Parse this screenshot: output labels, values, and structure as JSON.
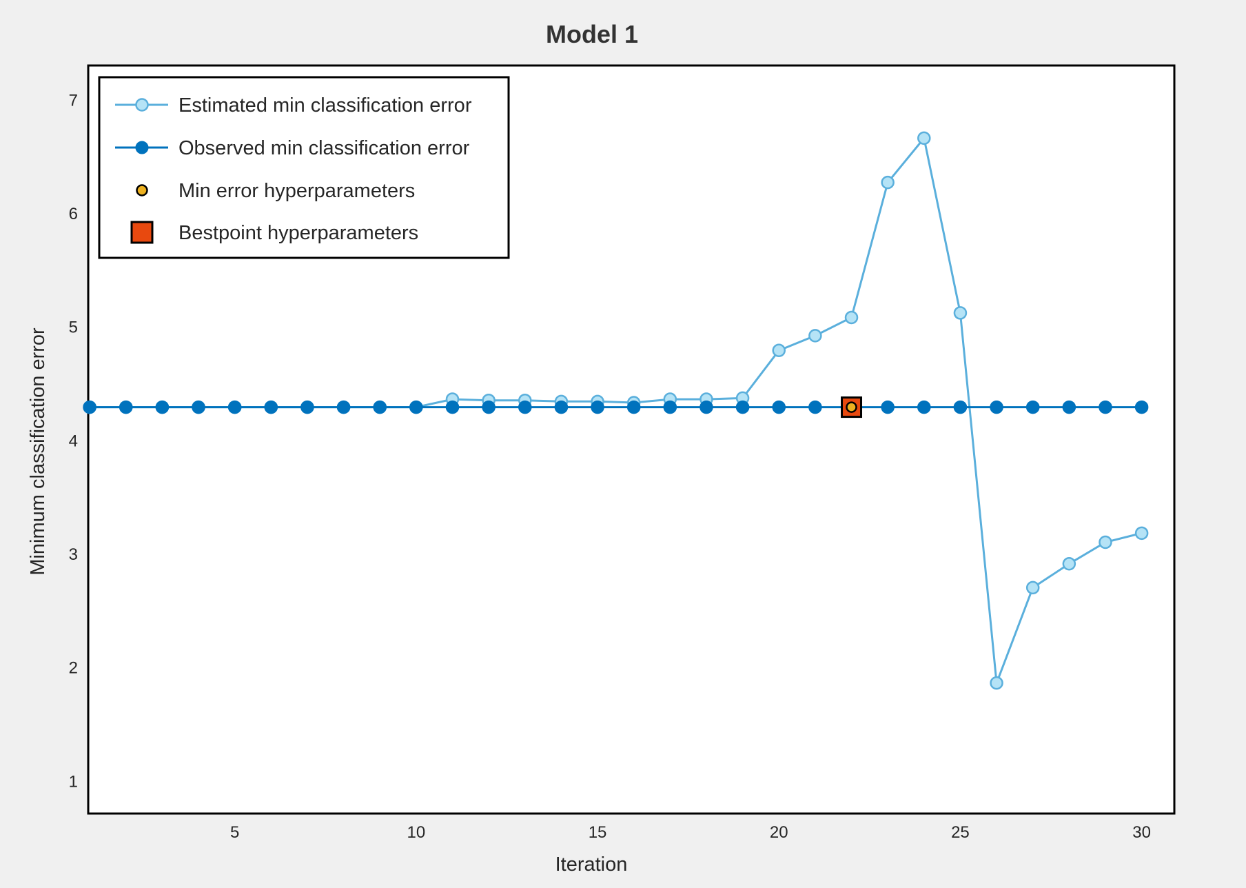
{
  "chart_data": {
    "type": "line",
    "title": "Model 1",
    "xlabel": "Iteration",
    "ylabel": "Minimum classification error",
    "xlim": [
      0.96,
      30.9
    ],
    "ylim": [
      0.71,
      7.3
    ],
    "xticks": [
      5,
      10,
      15,
      20,
      25,
      30
    ],
    "yticks": [
      1,
      2,
      3,
      4,
      5,
      6,
      7
    ],
    "grid": false,
    "legend_position": "top-left",
    "series": [
      {
        "name": "Estimated min classification error",
        "color": "#5aafdc",
        "marker": "open-circle",
        "x": [
          1,
          2,
          3,
          4,
          5,
          6,
          7,
          8,
          9,
          10,
          11,
          12,
          13,
          14,
          15,
          16,
          17,
          18,
          19,
          20,
          21,
          22,
          23,
          24,
          25,
          26,
          27,
          28,
          29,
          30
        ],
        "y": [
          4.29,
          4.29,
          4.29,
          4.29,
          4.29,
          4.29,
          4.29,
          4.29,
          4.29,
          4.29,
          4.36,
          4.35,
          4.35,
          4.34,
          4.34,
          4.33,
          4.36,
          4.36,
          4.37,
          4.79,
          4.92,
          5.08,
          6.27,
          6.66,
          5.12,
          1.86,
          2.7,
          2.91,
          3.1,
          3.18
        ]
      },
      {
        "name": "Observed min classification error",
        "color": "#0072bd",
        "marker": "filled-circle",
        "x": [
          1,
          2,
          3,
          4,
          5,
          6,
          7,
          8,
          9,
          10,
          11,
          12,
          13,
          14,
          15,
          16,
          17,
          18,
          19,
          20,
          21,
          22,
          23,
          24,
          25,
          26,
          27,
          28,
          29,
          30
        ],
        "y": [
          4.29,
          4.29,
          4.29,
          4.29,
          4.29,
          4.29,
          4.29,
          4.29,
          4.29,
          4.29,
          4.29,
          4.29,
          4.29,
          4.29,
          4.29,
          4.29,
          4.29,
          4.29,
          4.29,
          4.29,
          4.29,
          4.29,
          4.29,
          4.29,
          4.29,
          4.29,
          4.29,
          4.29,
          4.29,
          4.29
        ]
      }
    ],
    "min_error_point": {
      "name": "Min error hyperparameters",
      "x": 22,
      "y": 4.29,
      "color": "#edb120"
    },
    "bestpoint": {
      "name": "Bestpoint hyperparameters",
      "x": 22,
      "y": 4.29,
      "color": "#e8490f"
    }
  }
}
